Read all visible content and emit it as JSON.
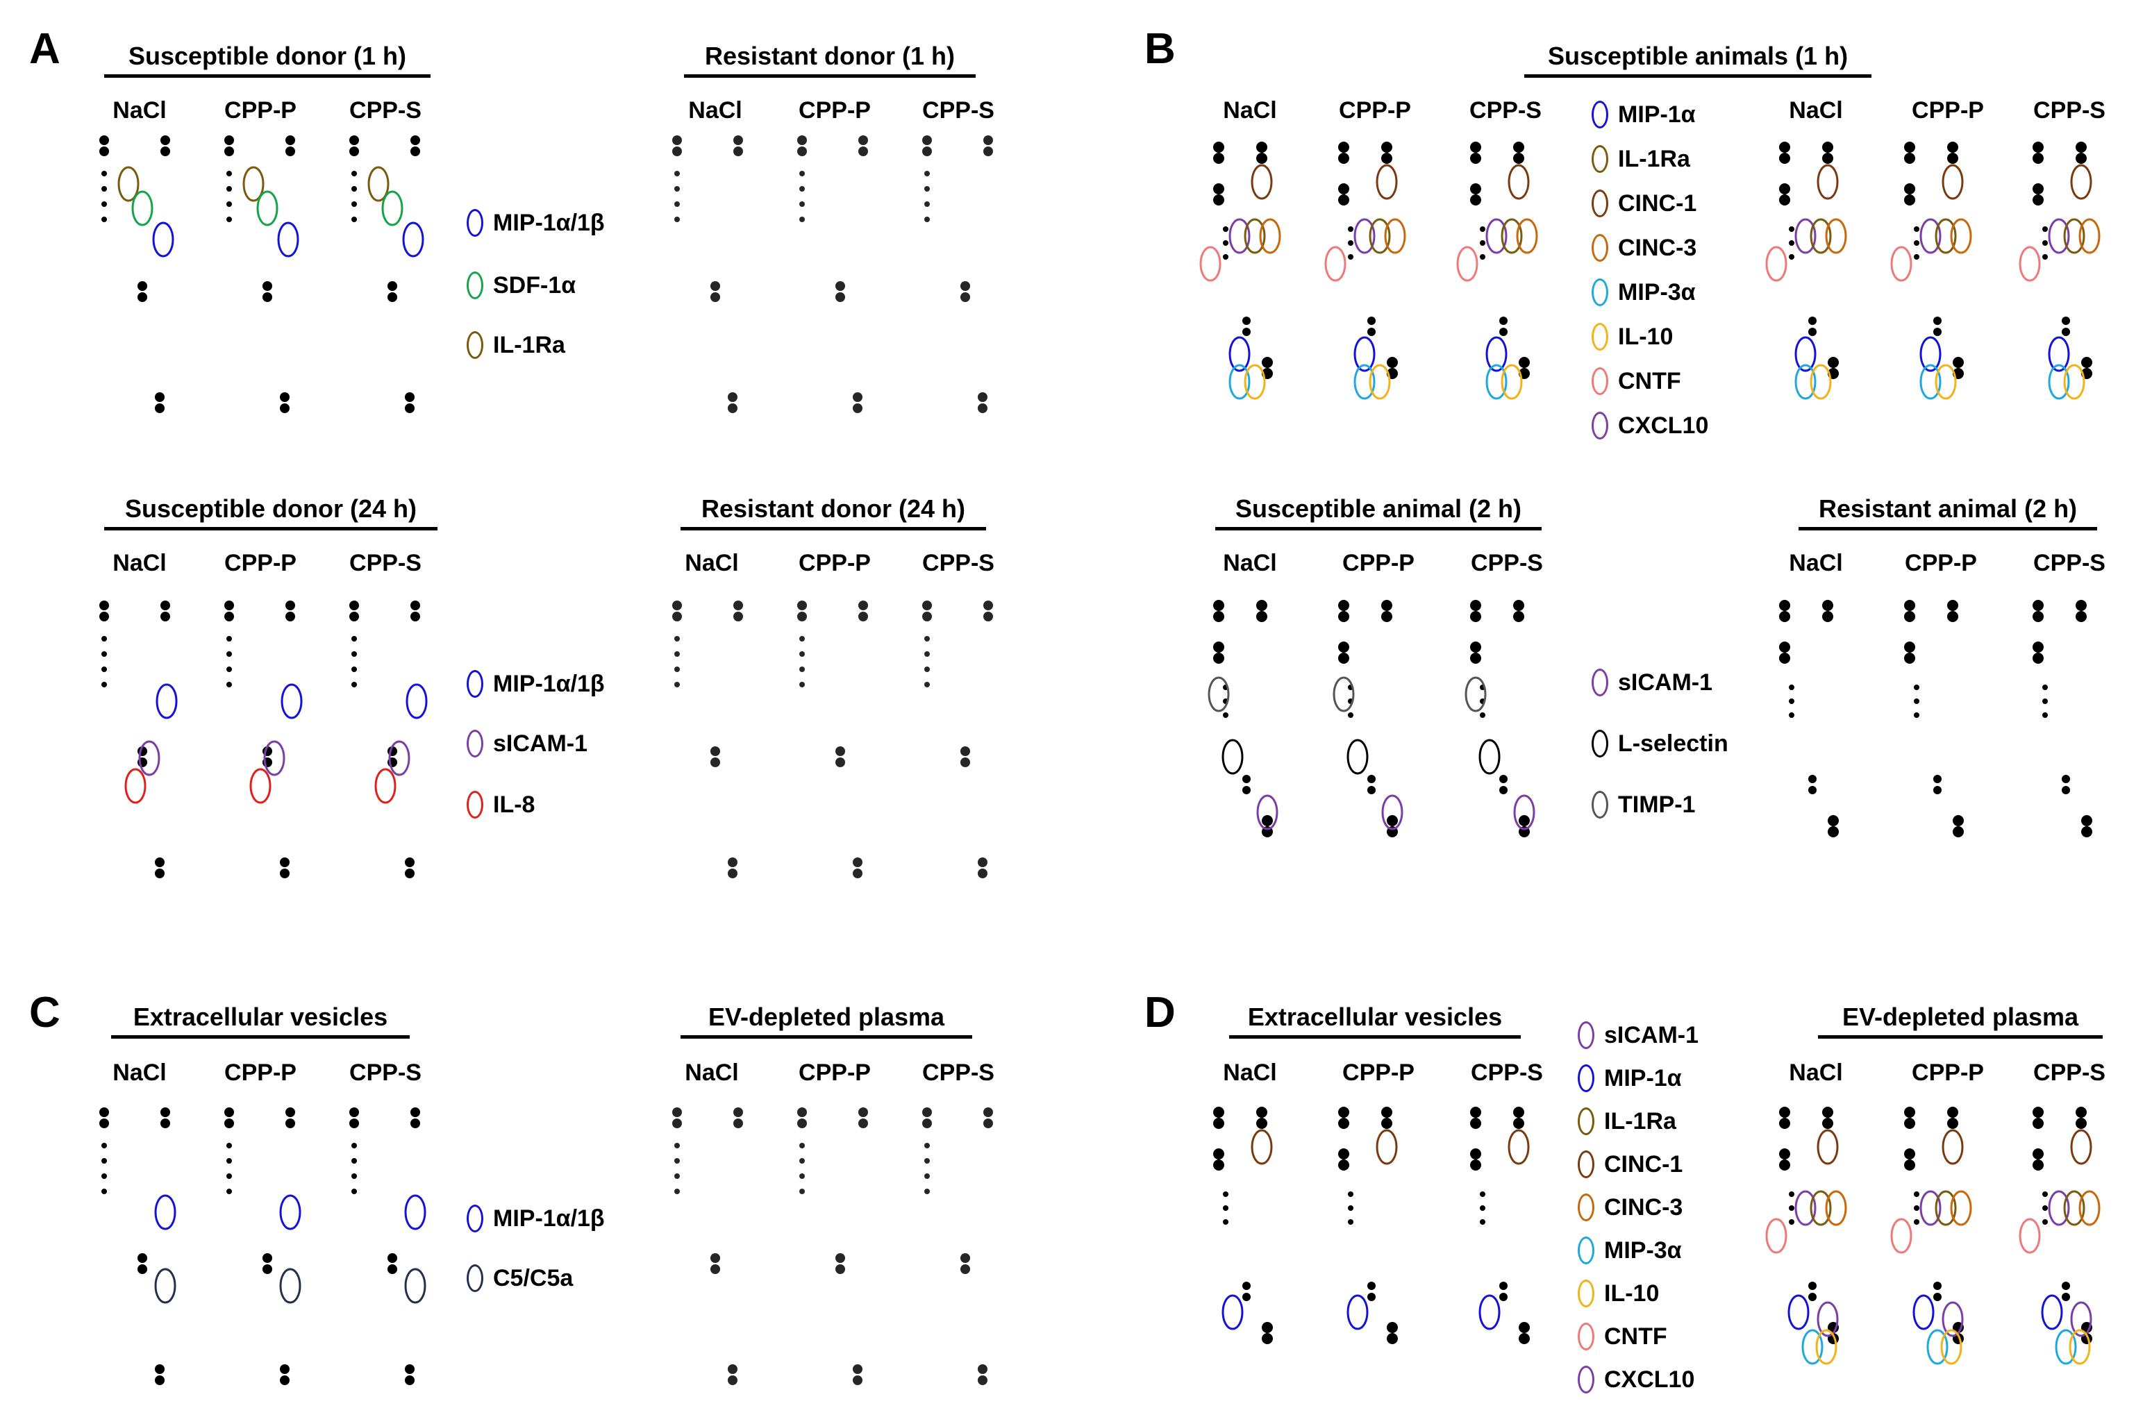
{
  "colors": {
    "blue": "#1212d8",
    "green": "#16a34a",
    "olive": "#7a5a0c",
    "purple": "#7a3ea6",
    "red": "#e0201a",
    "navy": "#243050",
    "brown": "#7a3a10",
    "orange": "#c7680c",
    "cyan": "#1ea8de",
    "yellow": "#f2b21a",
    "pink": "#ef7878",
    "gray": "#555555",
    "black": "#000000"
  },
  "panels": [
    {
      "letter": "A",
      "rows": [
        {
          "groups": [
            {
              "title": "Susceptible donor (1 h)",
              "columns": [
                "NaCl",
                "CPP-P",
                "CPP-S"
              ]
            },
            {
              "title": "Resistant donor (1 h)",
              "columns": [
                "NaCl",
                "CPP-P",
                "CPP-S"
              ]
            }
          ],
          "legend": [
            {
              "label": "MIP-1α/1β",
              "color": "blue"
            },
            {
              "label": "SDF-1α",
              "color": "green"
            },
            {
              "label": "IL-1Ra",
              "color": "olive"
            }
          ]
        },
        {
          "groups": [
            {
              "title": "Susceptible donor (24 h)",
              "columns": [
                "NaCl",
                "CPP-P",
                "CPP-S"
              ]
            },
            {
              "title": "Resistant donor (24 h)",
              "columns": [
                "NaCl",
                "CPP-P",
                "CPP-S"
              ]
            }
          ],
          "legend": [
            {
              "label": "MIP-1α/1β",
              "color": "blue"
            },
            {
              "label": "sICAM-1",
              "color": "purple"
            },
            {
              "label": "IL-8",
              "color": "red"
            }
          ]
        }
      ]
    },
    {
      "letter": "B",
      "rows": [
        {
          "groups": [
            {
              "title": "Susceptible animals (1 h)",
              "columns": [
                "NaCl",
                "CPP-P",
                "CPP-S",
                "NaCl",
                "CPP-P",
                "CPP-S"
              ]
            }
          ],
          "legend": [
            {
              "label": "MIP-1α",
              "color": "blue"
            },
            {
              "label": "IL-1Ra",
              "color": "olive"
            },
            {
              "label": "CINC-1",
              "color": "brown"
            },
            {
              "label": "CINC-3",
              "color": "orange"
            },
            {
              "label": "MIP-3α",
              "color": "cyan"
            },
            {
              "label": "IL-10",
              "color": "yellow"
            },
            {
              "label": "CNTF",
              "color": "pink"
            },
            {
              "label": "CXCL10",
              "color": "purple"
            }
          ]
        },
        {
          "groups": [
            {
              "title": "Susceptible animal (2 h)",
              "columns": [
                "NaCl",
                "CPP-P",
                "CPP-S"
              ]
            },
            {
              "title": "Resistant animal (2 h)",
              "columns": [
                "NaCl",
                "CPP-P",
                "CPP-S"
              ]
            }
          ],
          "legend": [
            {
              "label": "sICAM-1",
              "color": "purple"
            },
            {
              "label": "L-selectin",
              "color": "black"
            },
            {
              "label": "TIMP-1",
              "color": "gray"
            }
          ]
        }
      ]
    },
    {
      "letter": "C",
      "rows": [
        {
          "groups": [
            {
              "title": "Extracellular vesicles",
              "columns": [
                "NaCl",
                "CPP-P",
                "CPP-S"
              ]
            },
            {
              "title": "EV-depleted plasma",
              "columns": [
                "NaCl",
                "CPP-P",
                "CPP-S"
              ]
            }
          ],
          "legend": [
            {
              "label": "MIP-1α/1β",
              "color": "blue"
            },
            {
              "label": "C5/C5a",
              "color": "navy"
            }
          ]
        }
      ]
    },
    {
      "letter": "D",
      "rows": [
        {
          "groups": [
            {
              "title": "Extracellular vesicles",
              "columns": [
                "NaCl",
                "CPP-P",
                "CPP-S"
              ]
            },
            {
              "title": "EV-depleted plasma",
              "columns": [
                "NaCl",
                "CPP-P",
                "CPP-S"
              ]
            }
          ],
          "legend": [
            {
              "label": "sICAM-1",
              "color": "purple"
            },
            {
              "label": "MIP-1α",
              "color": "blue"
            },
            {
              "label": "IL-1Ra",
              "color": "olive"
            },
            {
              "label": "CINC-1",
              "color": "brown"
            },
            {
              "label": "CINC-3",
              "color": "orange"
            },
            {
              "label": "MIP-3α",
              "color": "cyan"
            },
            {
              "label": "IL-10",
              "color": "yellow"
            },
            {
              "label": "CNTF",
              "color": "pink"
            },
            {
              "label": "CXCL10",
              "color": "purple"
            }
          ]
        }
      ]
    }
  ]
}
